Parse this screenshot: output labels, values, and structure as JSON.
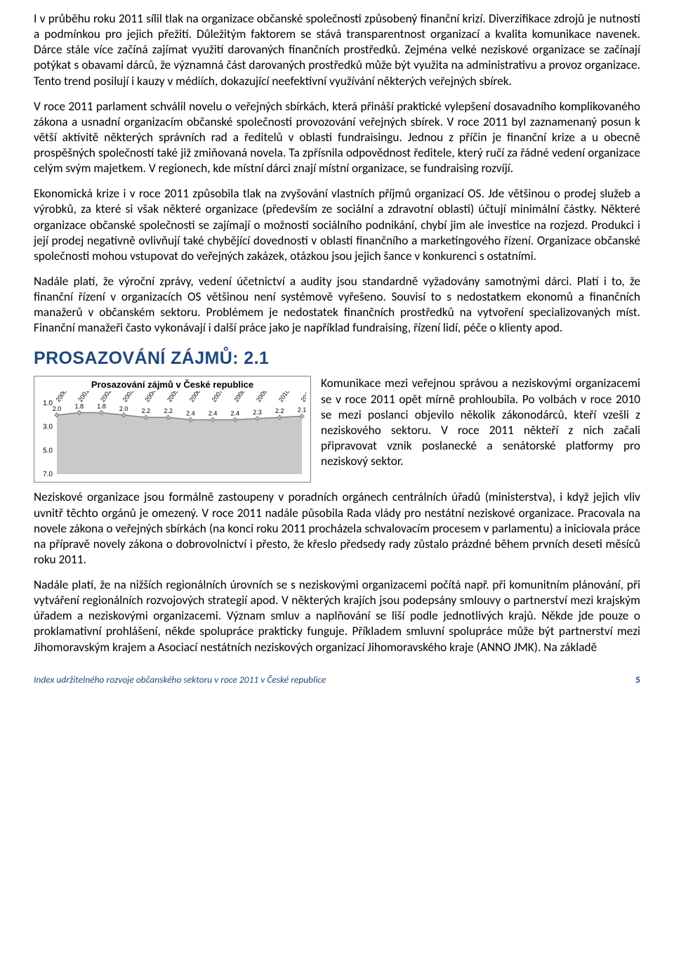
{
  "paragraphs": {
    "p1": "I v průběhu roku 2011 sílil tlak na organizace občanské společnosti způsobený finanční krizí. Diverzifikace zdrojů je nutností a podmínkou pro jejich přežití. Důležitým faktorem se stává transparentnost organizací a kvalita komunikace navenek. Dárce stále více začíná zajímat využití darovaných finančních prostředků. Zejména velké neziskové organizace se začínají potýkat s obavami dárců, že významná část darovaných prostředků může být využita na administrativu a provoz organizace. Tento trend posilují i kauzy v médiích, dokazující neefektivní využívání některých veřejných sbírek.",
    "p2": "V roce 2011 parlament schválil novelu o veřejných sbírkách, která přináší praktické vylepšení dosavadního komplikovaného zákona a usnadní organizacím občanské společnosti provozování veřejných sbírek. V roce 2011 byl zaznamenaný posun k větší aktivitě některých správních rad a ředitelů v oblasti fundraisingu. Jednou z příčin je finanční krize a u obecně prospěšných společností také již zmiňovaná novela. Ta zpřísnila odpovědnost ředitele, který ručí za řádné vedení organizace celým svým majetkem. V regionech, kde místní dárci znají místní organizace, se fundraising rozvíjí.",
    "p3": "Ekonomická krize i v roce 2011 způsobila tlak na zvyšování vlastních příjmů organizací OS. Jde většinou o prodej služeb a výrobků, za které si však některé organizace (především ze sociální a zdravotní oblasti) účtují minimální částky. Některé organizace občanské společnosti se zajímají o možnosti sociálního podnikání, chybí jim ale investice na rozjezd. Produkci i její prodej negativně ovlivňují také chybějící dovednosti v oblasti finančního a marketingového řízení.  Organizace občanské společnosti mohou vstupovat do veřejných zakázek, otázkou jsou jejich šance v konkurenci s ostatními.",
    "p4": "Nadále platí, že výroční zprávy, vedení účetnictví a audity jsou standardně vyžadovány samotnými dárci. Platí i to, že finanční řízení v organizacích OS většinou není systémově vyřešeno. Souvisí to s nedostatkem ekonomů a finančních manažerů v občanském sektoru. Problémem je nedostatek finančních prostředků na vytvoření specializovaných míst. Finanční manažeři často vykonávají i další práce jako je například fundraising, řízení lidí, péče o klienty apod.",
    "side": "Komunikace mezi veřejnou správou a neziskovými organizacemi se v roce 2011 opět mírně prohloubila. Po volbách v roce 2010 se mezi poslanci objevilo několik zákonodárců, kteří vzešli z neziskového sektoru. V roce 2011 někteří z nich začali připravovat vznik poslanecké a senátorské platformy pro neziskový sektor.",
    "p5": "Neziskové organizace jsou formálně zastoupeny v poradních orgánech centrálních úřadů (ministerstva), i když jejich vliv uvnitř těchto orgánů je omezený. V roce 2011 nadále působila Rada vlády pro nestátní neziskové organizace. Pracovala na novele zákona o veřejných sbírkách (na konci roku 2011 procházela schvalovacím procesem v parlamentu) a iniciovala práce na přípravě novely zákona o dobrovolnictví i přesto, že křeslo předsedy rady zůstalo prázdné během prvních deseti měsíců roku 2011.",
    "p6": "Nadále platí, že na nižších regionálních úrovních se s neziskovými organizacemi počítá např. při komunitním plánování, při vytváření regionálních rozvojových strategií apod. V některých krajích jsou podepsány smlouvy o partnerství mezi krajským úřadem a neziskovými organizacemi. Význam smluv a naplňování se liší podle jednotlivých krajů. Někde jde pouze o proklamativní prohlášení, někde spolupráce prakticky funguje. Příkladem smluvní spolupráce může být partnerství mezi Jihomoravským krajem a Asociací nestátních neziskových organizací Jihomoravského kraje (ANNO JMK). Na základě"
  },
  "section_title": "PROSAZOVÁNÍ ZÁJMŮ: 2.1",
  "chart": {
    "title": "Prosazování zájmů v České republice",
    "years": [
      "2000",
      "2001",
      "2002",
      "2003",
      "2004",
      "2005",
      "2006",
      "2007",
      "2008",
      "2009",
      "2010",
      "2011"
    ],
    "values": [
      2.0,
      1.8,
      1.8,
      2.0,
      2.2,
      2.2,
      2.4,
      2.4,
      2.4,
      2.3,
      2.2,
      2.1
    ],
    "y_ticks": [
      1.0,
      3.0,
      5.0,
      7.0
    ],
    "line_color": "#808080",
    "fill_color": "#c0c0c0",
    "marker_fill": "#bfbfbf",
    "marker_stroke": "#808080",
    "bg": "#ffffff",
    "label_font": 9,
    "axis_font": 10,
    "title_font": 13
  },
  "footer": {
    "left": "Index udržitelného rozvoje občanského sektoru v roce 2011 v České republice",
    "page": "5"
  },
  "colors": {
    "heading": "#1f497d",
    "text": "#000000"
  }
}
